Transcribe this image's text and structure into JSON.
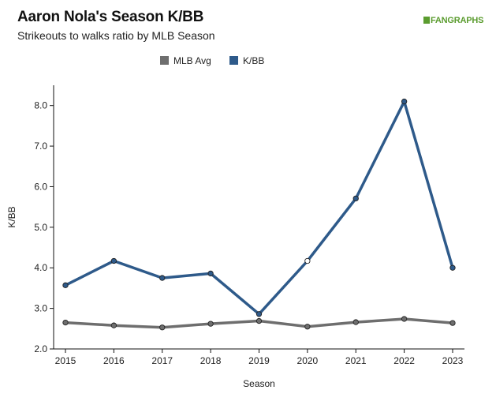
{
  "header": {
    "title": "Aaron Nola's Season K/BB",
    "subtitle": "Strikeouts to walks ratio by MLB Season",
    "logo_text": "FANGRAPHS"
  },
  "colors": {
    "mlb_avg": "#6e6e6e",
    "k_bb": "#2e5a8a",
    "logo": "#5b9c2f"
  },
  "chart_data": {
    "type": "line",
    "title": "Aaron Nola's Season K/BB",
    "subtitle": "Strikeouts to walks ratio by MLB Season",
    "xlabel": "Season",
    "ylabel": "K/BB",
    "x": [
      "2015",
      "2016",
      "2017",
      "2018",
      "2019",
      "2020",
      "2021",
      "2022",
      "2023"
    ],
    "ylim": [
      2.0,
      8.5
    ],
    "yticks": [
      "2.0",
      "3.0",
      "4.0",
      "5.0",
      "6.0",
      "7.0",
      "8.0"
    ],
    "grid": false,
    "legend": "top",
    "series": [
      {
        "name": "MLB Avg",
        "values": [
          2.65,
          2.58,
          2.53,
          2.62,
          2.69,
          2.55,
          2.66,
          2.74,
          2.64
        ]
      },
      {
        "name": "K/BB",
        "values": [
          3.57,
          4.17,
          3.75,
          3.86,
          2.86,
          4.17,
          5.71,
          8.1,
          4.0
        ],
        "hollow_points": [
          "2020"
        ]
      }
    ]
  }
}
